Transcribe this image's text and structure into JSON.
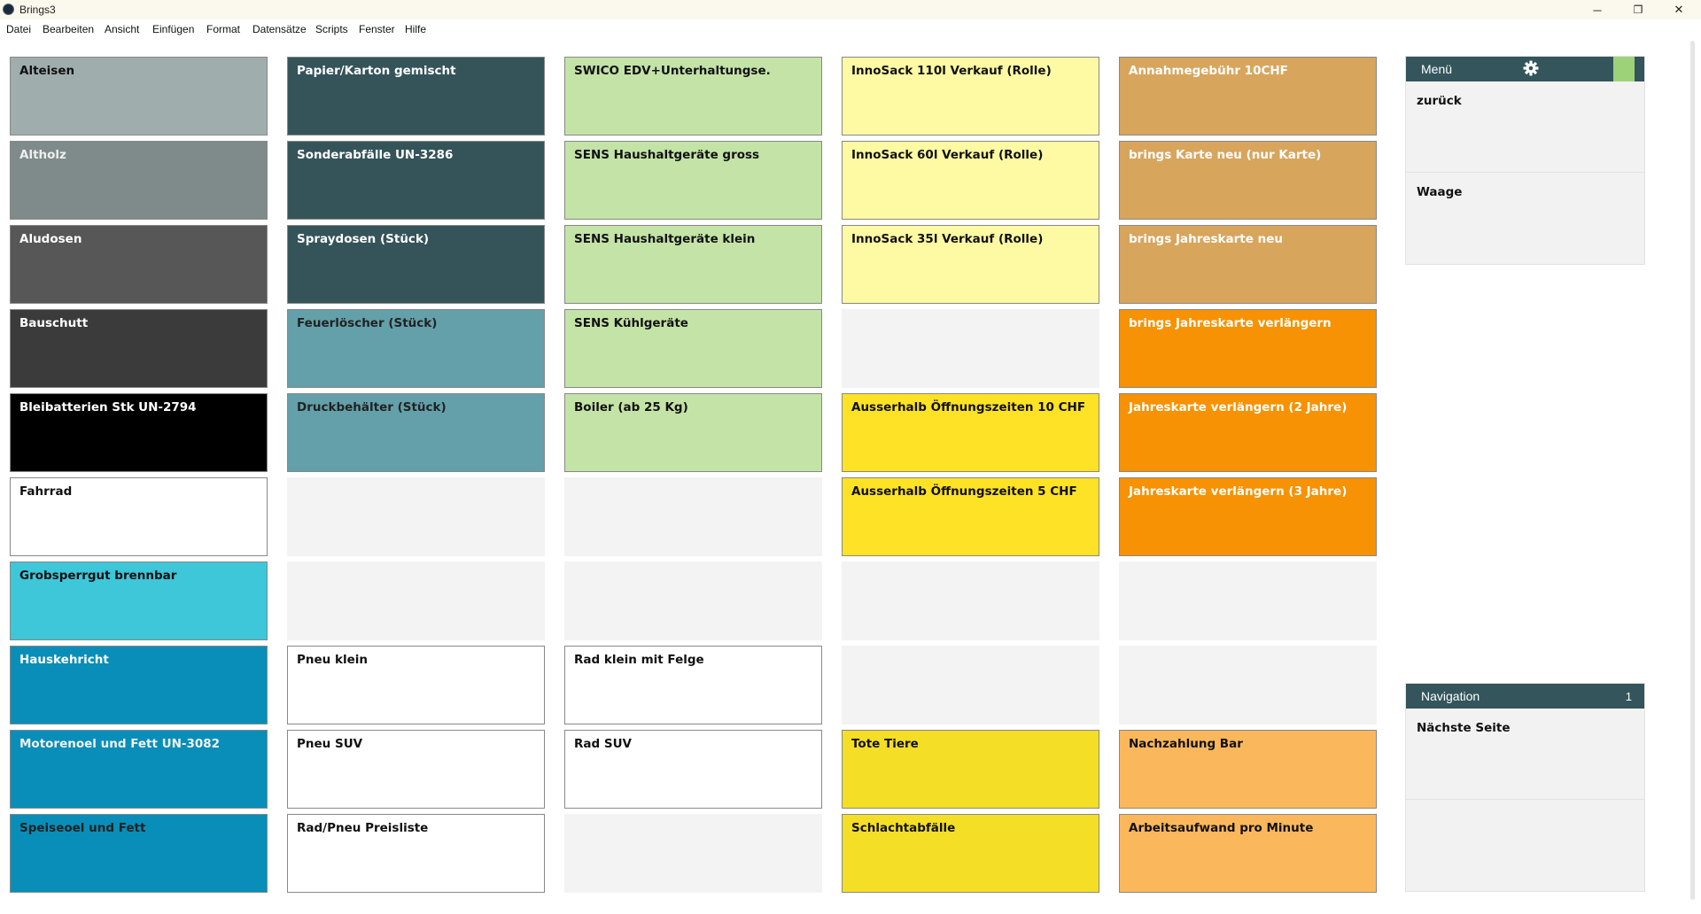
{
  "window": {
    "title": "Brings3",
    "minimize": "─",
    "maximize": "❐",
    "close": "✕"
  },
  "menu": [
    "Datei",
    "Bearbeiten",
    "Ansicht",
    "Einfügen",
    "Format",
    "Datensätze",
    "Scripts",
    "Fenster",
    "Hilfe"
  ],
  "colors": {
    "grau_hell": "#a0adad",
    "grau": "#7f8b8b",
    "grau_dunkel": "#575757",
    "anthrazit": "#3b3b3b",
    "schwarz": "#000000",
    "weiss": "#ffffff",
    "tuerkis": "#3ec6d9",
    "blau": "#088eb8",
    "petrol_dunkel": "#35545a",
    "petrol_hell": "#63a0a9",
    "gruen_hell": "#c4e3a7",
    "gelb_hell": "#fefaa4",
    "gelb": "#f5de26",
    "sand": "#d8a55d",
    "orange": "#f69203",
    "aprikose": "#fbb75c",
    "leer": "#f3f3f3"
  },
  "grid": {
    "columns": [
      [
        {
          "label": "Alteisen",
          "color": "#a0adad",
          "text_color": "#111111"
        },
        {
          "label": "Altholz",
          "color": "#7f8b8b",
          "text_color": "#eeeeee"
        },
        {
          "label": "Aludosen",
          "color": "#575757",
          "text_color": "#ffffff"
        },
        {
          "label": "Bauschutt",
          "color": "#3b3b3b",
          "text_color": "#ffffff"
        },
        {
          "label": "Bleibatterien Stk UN-2794",
          "color": "#000000",
          "text_color": "#ffffff"
        },
        {
          "label": "Fahrrad",
          "color": "#ffffff",
          "text_color": "#111111"
        },
        {
          "label": "Grobsperrgut brennbar",
          "color": "#3ec6d9",
          "text_color": "#111111"
        },
        {
          "label": "Hauskehricht",
          "color": "#088eb8",
          "text_color": "#ffffff"
        },
        {
          "label": "Motorenoel und Fett UN-3082",
          "color": "#088eb8",
          "text_color": "#f2f2f2"
        },
        {
          "label": "Speiseoel und Fett",
          "color": "#088eb8",
          "text_color": "#222222"
        }
      ],
      [
        {
          "label": "Papier/Karton gemischt",
          "color": "#35545a",
          "text_color": "#ffffff"
        },
        {
          "label": "Sonderabfälle UN-3286",
          "color": "#35545a",
          "text_color": "#ffffff"
        },
        {
          "label": "Spraydosen (Stück)",
          "color": "#35545a",
          "text_color": "#ffffff"
        },
        {
          "label": "Feuerlöscher (Stück)",
          "color": "#63a0a9",
          "text_color": "#222222"
        },
        {
          "label": "Druckbehälter (Stück)",
          "color": "#63a0a9",
          "text_color": "#222222"
        },
        {
          "label": "",
          "color": "#f3f3f3",
          "text_color": "#111111"
        },
        {
          "label": "",
          "color": "#f3f3f3",
          "text_color": "#111111"
        },
        {
          "label": "Pneu klein",
          "color": "#ffffff",
          "text_color": "#111111"
        },
        {
          "label": "Pneu SUV",
          "color": "#ffffff",
          "text_color": "#111111"
        },
        {
          "label": "Rad/Pneu Preisliste",
          "color": "#ffffff",
          "text_color": "#111111"
        }
      ],
      [
        {
          "label": "SWICO EDV+Unterhaltungse.",
          "color": "#c4e3a7",
          "text_color": "#111111"
        },
        {
          "label": "SENS Haushaltgeräte gross",
          "color": "#c4e3a7",
          "text_color": "#111111"
        },
        {
          "label": "SENS Haushaltgeräte klein",
          "color": "#c4e3a7",
          "text_color": "#111111"
        },
        {
          "label": "SENS Kühlgeräte",
          "color": "#c4e3a7",
          "text_color": "#111111"
        },
        {
          "label": "Boiler (ab 25 Kg)",
          "color": "#c4e3a7",
          "text_color": "#111111"
        },
        {
          "label": "",
          "color": "#f3f3f3",
          "text_color": "#111111"
        },
        {
          "label": "",
          "color": "#f3f3f3",
          "text_color": "#111111"
        },
        {
          "label": "Rad klein mit Felge",
          "color": "#ffffff",
          "text_color": "#111111"
        },
        {
          "label": "Rad SUV",
          "color": "#ffffff",
          "text_color": "#111111"
        },
        {
          "label": "",
          "color": "#f3f3f3",
          "text_color": "#111111"
        }
      ],
      [
        {
          "label": "InnoSack 110l Verkauf (Rolle)",
          "color": "#fefaa4",
          "text_color": "#111111"
        },
        {
          "label": "InnoSack 60l Verkauf (Rolle)",
          "color": "#fefaa4",
          "text_color": "#111111"
        },
        {
          "label": "InnoSack 35l Verkauf (Rolle)",
          "color": "#fefaa4",
          "text_color": "#111111"
        },
        {
          "label": "",
          "color": "#f3f3f3",
          "text_color": "#111111"
        },
        {
          "label": "Ausserhalb Öffnungszeiten 10 CHF",
          "color": "#fde225",
          "text_color": "#111111"
        },
        {
          "label": "Ausserhalb Öffnungszeiten 5 CHF",
          "color": "#fde225",
          "text_color": "#111111"
        },
        {
          "label": "",
          "color": "#f3f3f3",
          "text_color": "#111111"
        },
        {
          "label": "",
          "color": "#f3f3f3",
          "text_color": "#111111"
        },
        {
          "label": "Tote Tiere",
          "color": "#f5de26",
          "text_color": "#111111"
        },
        {
          "label": "Schlachtabfälle",
          "color": "#f5de26",
          "text_color": "#111111"
        }
      ],
      [
        {
          "label": "Annahmegebühr 10CHF",
          "color": "#d8a55d",
          "text_color": "#ffffff"
        },
        {
          "label": "brings Karte neu (nur Karte)",
          "color": "#d8a55d",
          "text_color": "#ffffff"
        },
        {
          "label": "brings Jahreskarte neu",
          "color": "#d8a55d",
          "text_color": "#ffffff"
        },
        {
          "label": "brings Jahreskarte verlängern",
          "color": "#f69203",
          "text_color": "#ffffff"
        },
        {
          "label": "Jahreskarte verlängern (2 Jahre)",
          "color": "#f69203",
          "text_color": "#ffffff"
        },
        {
          "label": "Jahreskarte verlängern (3 Jahre)",
          "color": "#f69203",
          "text_color": "#ffffff"
        },
        {
          "label": "",
          "color": "#f3f3f3",
          "text_color": "#111111"
        },
        {
          "label": "",
          "color": "#f3f3f3",
          "text_color": "#111111"
        },
        {
          "label": "Nachzahlung Bar",
          "color": "#fbb75c",
          "text_color": "#111111"
        },
        {
          "label": "Arbeitsaufwand pro Minute",
          "color": "#fbb75c",
          "text_color": "#111111"
        }
      ]
    ]
  },
  "menu_panel": {
    "title": "Menü",
    "settings_icon": "gear-icon",
    "status_color": "#9ed279",
    "items": [
      "zurück",
      "Waage"
    ]
  },
  "navigation_panel": {
    "title": "Navigation",
    "page": "1",
    "items": [
      "Nächste Seite",
      ""
    ]
  }
}
